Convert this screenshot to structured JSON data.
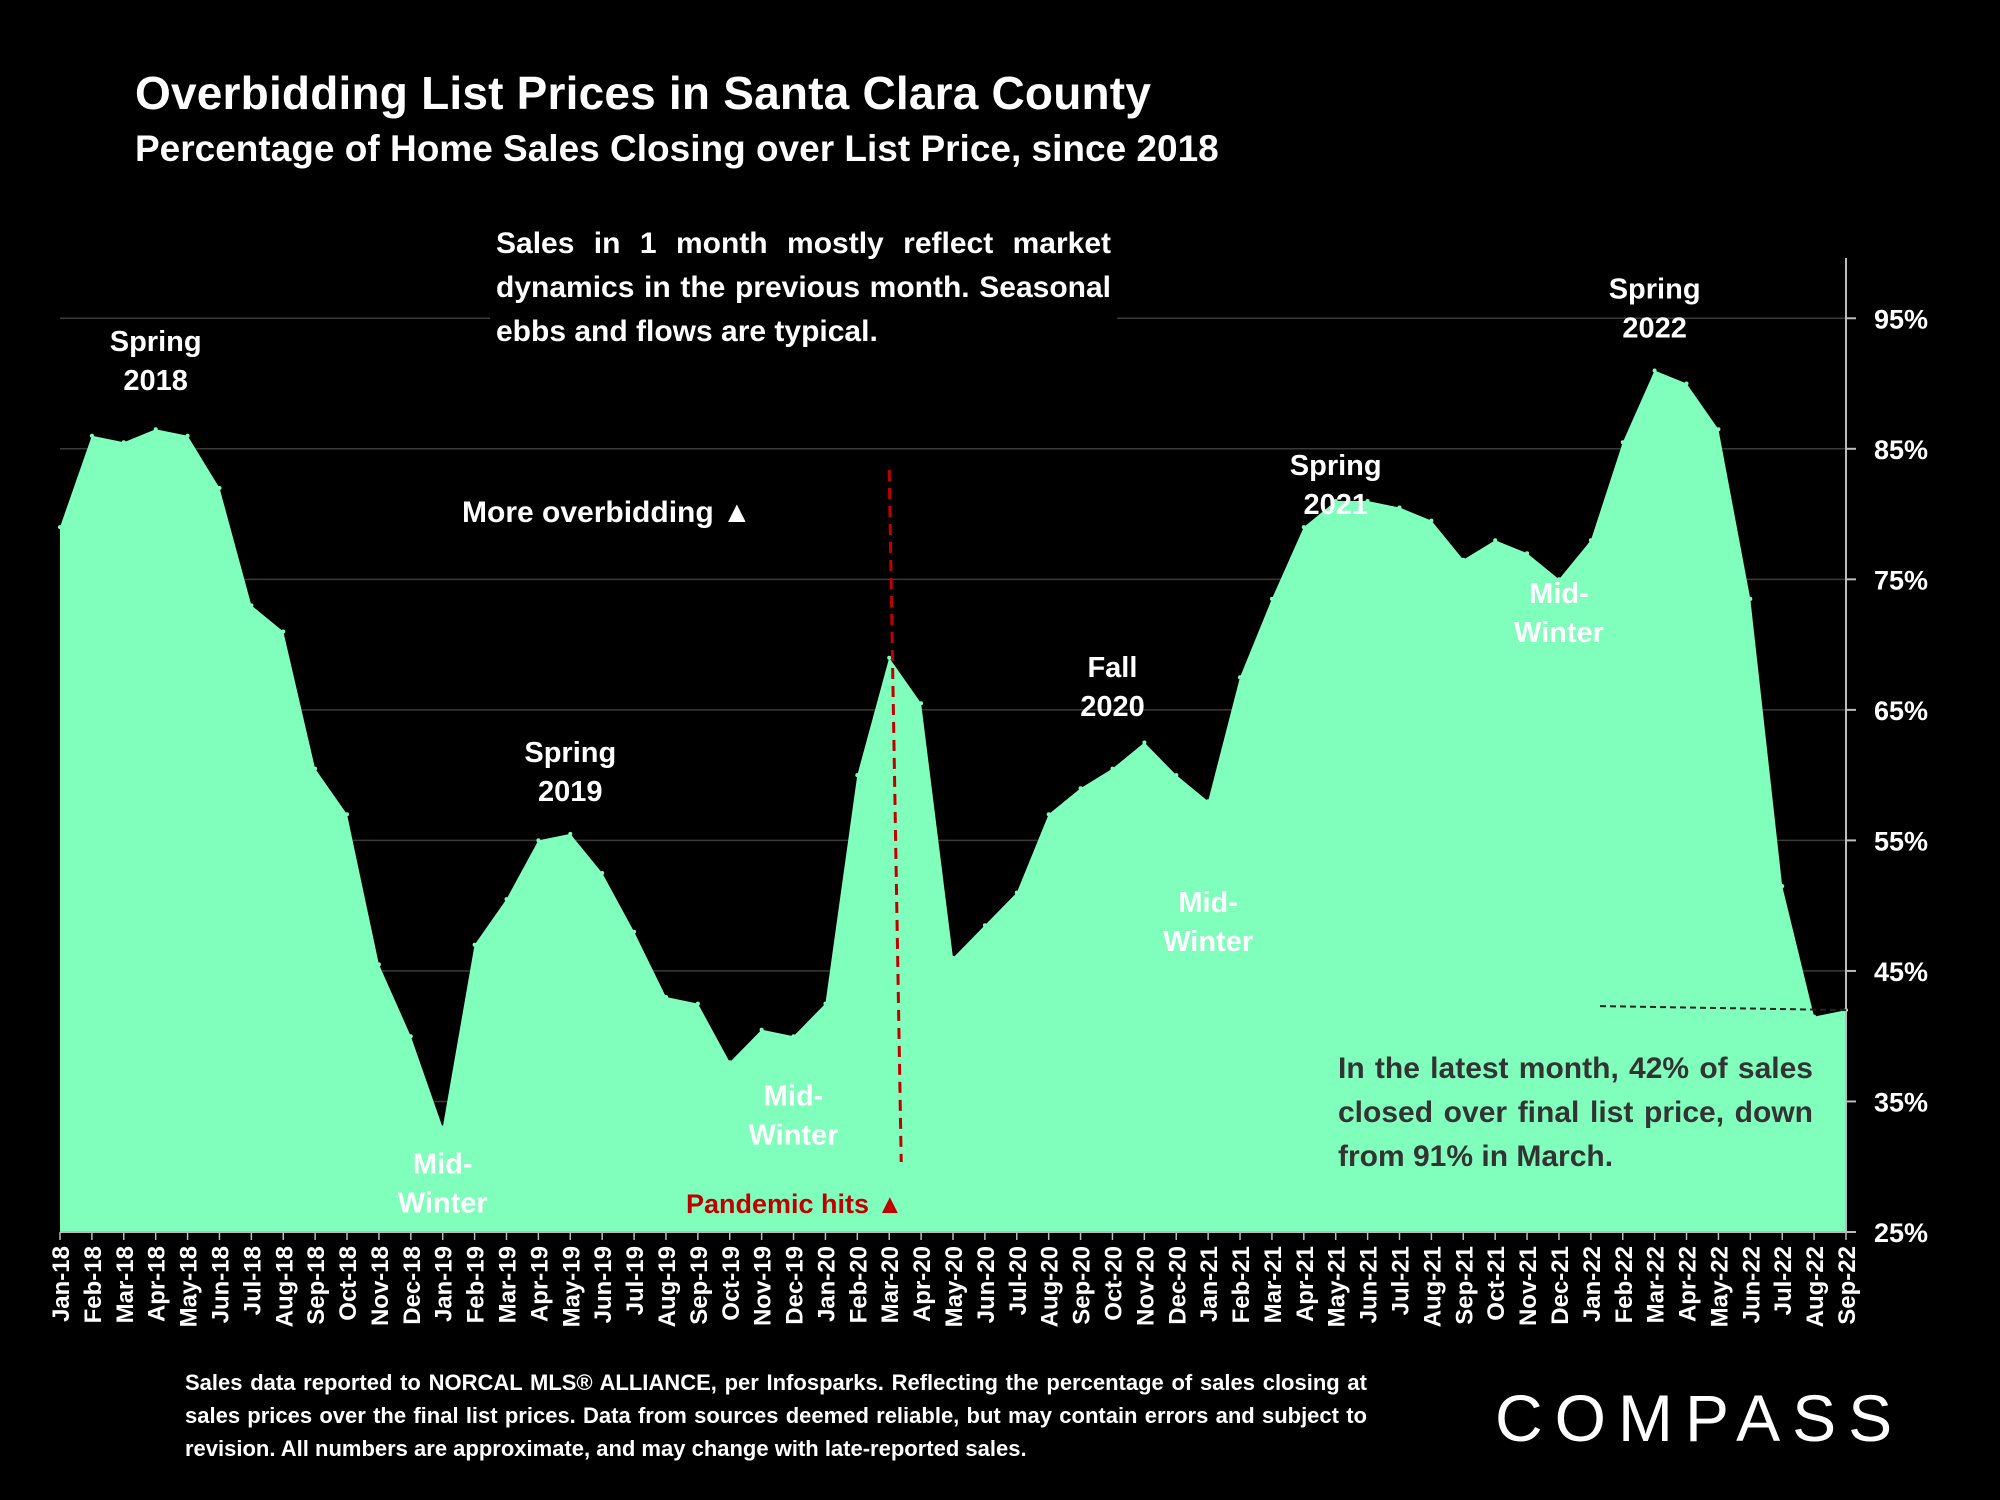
{
  "chart_data": {
    "type": "area",
    "title": "Overbidding List Prices in Santa Clara County",
    "subtitle": "Percentage of Home Sales Closing over List Price, since 2018",
    "x": [
      "Jan-18",
      "Feb-18",
      "Mar-18",
      "Apr-18",
      "May-18",
      "Jun-18",
      "Jul-18",
      "Aug-18",
      "Sep-18",
      "Oct-18",
      "Nov-18",
      "Dec-18",
      "Jan-19",
      "Feb-19",
      "Mar-19",
      "Apr-19",
      "May-19",
      "Jun-19",
      "Jul-19",
      "Aug-19",
      "Sep-19",
      "Oct-19",
      "Nov-19",
      "Dec-19",
      "Jan-20",
      "Feb-20",
      "Mar-20",
      "Apr-20",
      "May-20",
      "Jun-20",
      "Jul-20",
      "Aug-20",
      "Sep-20",
      "Oct-20",
      "Nov-20",
      "Dec-20",
      "Jan-21",
      "Feb-21",
      "Mar-21",
      "Apr-21",
      "May-21",
      "Jun-21",
      "Jul-21",
      "Aug-21",
      "Sep-21",
      "Oct-21",
      "Nov-21",
      "Dec-21",
      "Jan-22",
      "Feb-22",
      "Mar-22",
      "Apr-22",
      "May-22",
      "Jun-22",
      "Jul-22",
      "Aug-22",
      "Sep-22"
    ],
    "values": [
      79,
      86,
      85.5,
      86.5,
      86,
      82,
      73,
      71,
      60.5,
      57,
      45.5,
      40,
      33,
      47,
      50.5,
      55,
      55.5,
      52.5,
      48,
      43,
      42.5,
      38,
      40.5,
      40,
      42.5,
      60,
      69,
      65.5,
      46,
      48.5,
      51,
      57,
      59,
      60.5,
      62.5,
      60,
      58,
      67.5,
      73.5,
      79,
      81,
      81,
      80.5,
      79.5,
      76.5,
      78,
      77,
      75,
      78,
      85.5,
      91,
      90,
      86.5,
      73.5,
      51.5,
      41.5,
      42
    ],
    "ylim": [
      25,
      100
    ],
    "yticks": [
      "25%",
      "35%",
      "45%",
      "55%",
      "65%",
      "75%",
      "85%",
      "95%"
    ],
    "ytick_values": [
      25,
      35,
      45,
      55,
      65,
      75,
      85,
      95
    ],
    "grid": true,
    "legend": "none",
    "annotations": [
      {
        "lines": [
          "Spring",
          "2018"
        ],
        "x": "Apr-18",
        "y": 92.5
      },
      {
        "lines": [
          "Mid-",
          "Winter"
        ],
        "x": "Jan-19",
        "y": 29.5
      },
      {
        "lines": [
          "Spring",
          "2019"
        ],
        "x": "May-19",
        "y": 61
      },
      {
        "lines": [
          "Mid-",
          "Winter"
        ],
        "x": "Dec-19",
        "y": 34.7
      },
      {
        "lines": [
          "Fall",
          "2020"
        ],
        "x": "Oct-20",
        "y": 67.5
      },
      {
        "lines": [
          "Mid-",
          "Winter"
        ],
        "x": "Jan-21",
        "y": 49.5
      },
      {
        "lines": [
          "Spring",
          "2021"
        ],
        "x": "May-21",
        "y": 83
      },
      {
        "lines": [
          "Mid-",
          "Winter"
        ],
        "x": "Dec-21",
        "y": 73.2
      },
      {
        "lines": [
          "Spring",
          "2022"
        ],
        "x": "Mar-22",
        "y": 96.5
      }
    ],
    "more_overbidding_label": "More overbidding ▲",
    "pandemic_label": "Pandemic hits ▲",
    "pandemic_marker": "Mar-20",
    "latest_marker_value": 42,
    "colors": {
      "area": "#80FFBC",
      "background": "#000000",
      "grid": "#3a3a3a",
      "pandemic": "#C00000",
      "text": "#ffffff",
      "note_text": "#333333"
    }
  },
  "notes": {
    "intro": "Sales in 1 month mostly reflect market dynamics in the previous month. Seasonal ebbs and flows are typical.",
    "latest": "In the latest month, 42% of sales closed over final list price, down from 91% in March."
  },
  "footnote": "Sales data reported to NORCAL MLS® ALLIANCE, per Infosparks. Reflecting the percentage of sales closing at sales prices over the final list prices. Data from sources deemed reliable, but may contain errors and subject to revision. All numbers are approximate, and may change with late-reported sales.",
  "logo": "COMPASS"
}
